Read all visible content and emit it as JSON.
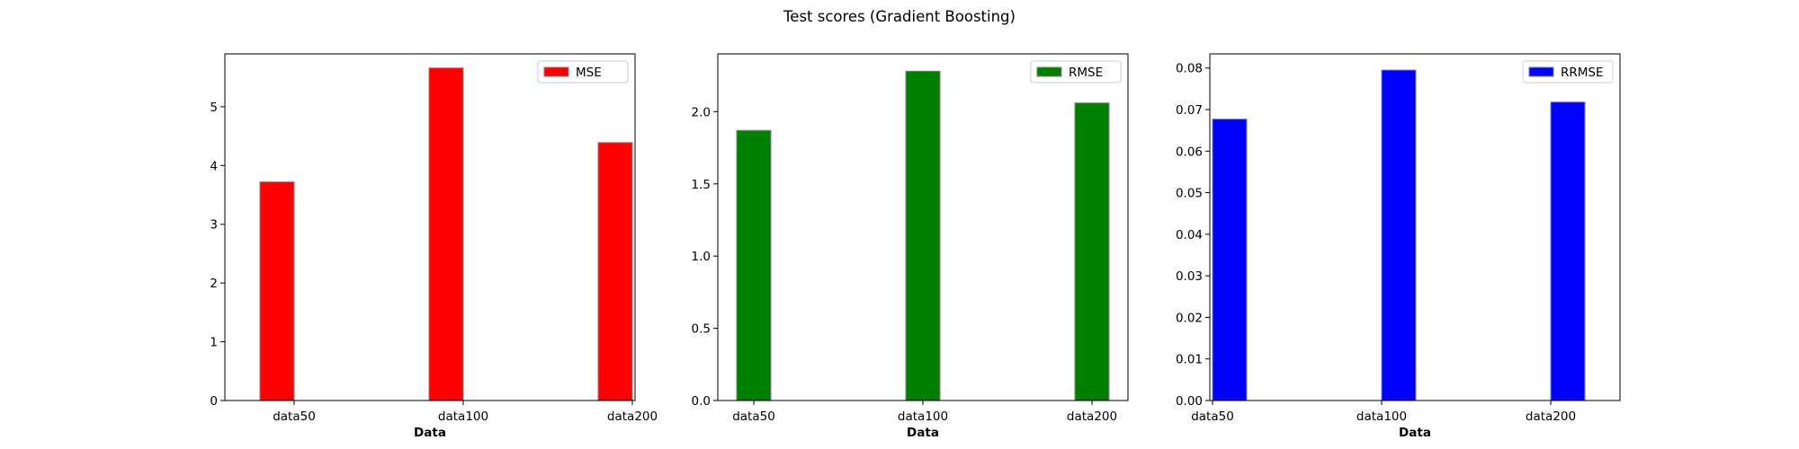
{
  "figure_title": "Test scores (Gradient Boosting)",
  "chart_data": [
    {
      "type": "bar",
      "title": "",
      "xlabel": "Data",
      "ylabel": "",
      "categories": [
        "data50",
        "data100",
        "data200"
      ],
      "series": [
        {
          "name": "MSE",
          "values": [
            3.72,
            5.66,
            4.39
          ],
          "color": "#ff0000"
        }
      ],
      "ylim": [
        0,
        5.9
      ],
      "yticks": [
        "0",
        "1",
        "2",
        "3",
        "4",
        "5"
      ],
      "ytick_values": [
        0,
        1,
        2,
        3,
        4,
        5
      ],
      "bar_alignment": "left-of-tick",
      "legend": "top-right",
      "grid": false
    },
    {
      "type": "bar",
      "title": "",
      "xlabel": "Data",
      "ylabel": "",
      "categories": [
        "data50",
        "data100",
        "data200"
      ],
      "series": [
        {
          "name": "RMSE",
          "values": [
            1.87,
            2.28,
            2.06
          ],
          "color": "#008000"
        }
      ],
      "ylim": [
        0,
        2.4
      ],
      "yticks": [
        "0.0",
        "0.5",
        "1.0",
        "1.5",
        "2.0"
      ],
      "ytick_values": [
        0,
        0.5,
        1.0,
        1.5,
        2.0
      ],
      "bar_alignment": "centered-on-tick",
      "legend": "top-right",
      "grid": false
    },
    {
      "type": "bar",
      "title": "",
      "xlabel": "Data",
      "ylabel": "",
      "categories": [
        "data50",
        "data100",
        "data200"
      ],
      "series": [
        {
          "name": "RRMSE",
          "values": [
            0.0677,
            0.0795,
            0.0718
          ],
          "color": "#0000ff"
        }
      ],
      "ylim": [
        0,
        0.0834
      ],
      "yticks": [
        "0.00",
        "0.01",
        "0.02",
        "0.03",
        "0.04",
        "0.05",
        "0.06",
        "0.07",
        "0.08"
      ],
      "ytick_values": [
        0,
        0.01,
        0.02,
        0.03,
        0.04,
        0.05,
        0.06,
        0.07,
        0.08
      ],
      "bar_alignment": "right-of-tick",
      "legend": "top-right",
      "grid": false
    }
  ]
}
